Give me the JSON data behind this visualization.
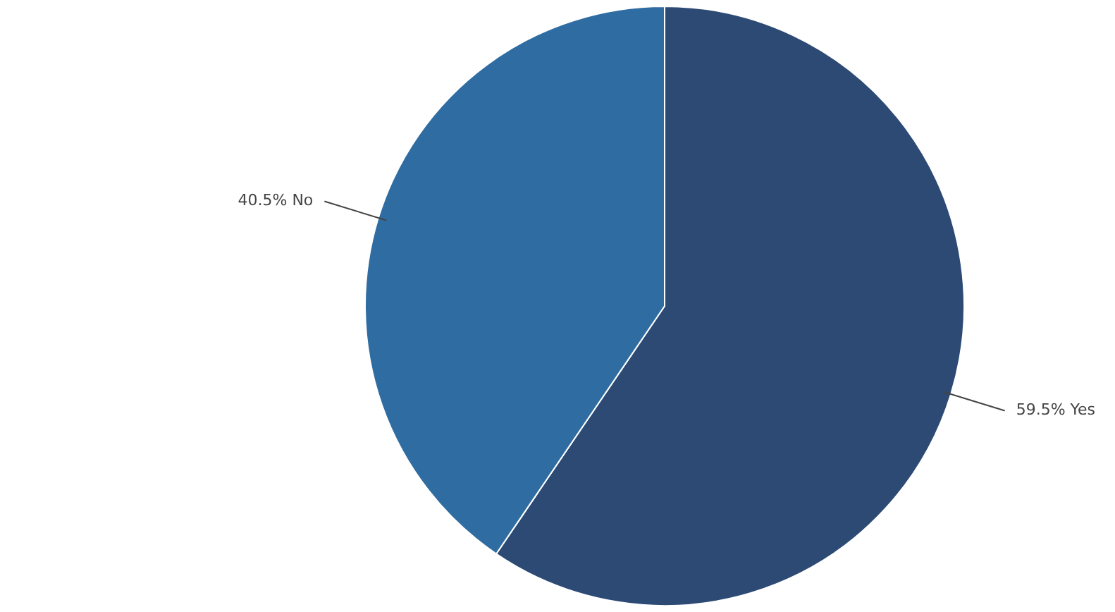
{
  "chart_data": {
    "type": "pie",
    "categories": [
      "Yes",
      "No"
    ],
    "values": [
      59.5,
      40.5
    ],
    "value_labels": [
      "59.5%",
      "40.5%"
    ],
    "colors": [
      "#2c4a74",
      "#2f6ca1"
    ],
    "legend": false
  }
}
